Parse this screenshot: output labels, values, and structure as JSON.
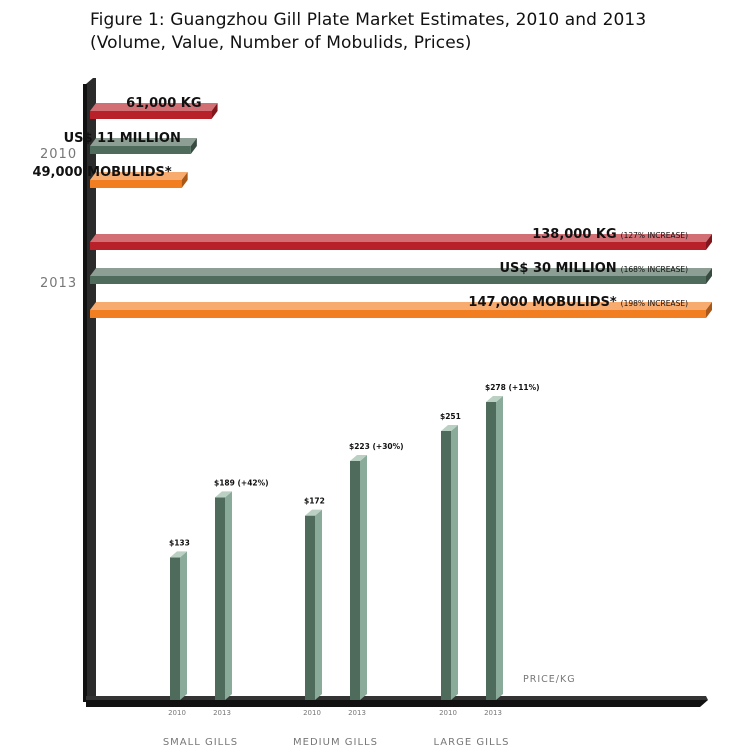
{
  "title_line1": "Figure 1: Guangzhou Gill Plate Market Estimates, 2010 and 2013",
  "title_line2": "(Volume, Value, Number of Mobulids, Prices)",
  "chart_data": [
    {
      "type": "bar",
      "orientation": "horizontal",
      "categories": [
        "2010",
        "2013"
      ],
      "series": [
        {
          "metric": "volume",
          "color": "#b8212a",
          "values": [
            61000,
            138000
          ],
          "unit": "kg",
          "labels": [
            "61,000 KG",
            "138,000 KG"
          ],
          "notes": [
            "",
            "(127% INCREASE)"
          ]
        },
        {
          "metric": "value",
          "color": "#4f6b5c",
          "values": [
            11,
            30
          ],
          "unit": "US$ million",
          "labels": [
            "US$ 11 MILLION",
            "US$ 30 MILLION"
          ],
          "notes": [
            "",
            "(168% INCREASE)"
          ]
        },
        {
          "metric": "mobulids",
          "color": "#f27e22",
          "values": [
            49000,
            147000
          ],
          "labels": [
            "49,000 MOBULIDS*",
            "147,000 MOBULIDS*"
          ],
          "notes": [
            "",
            "(198% INCREASE)"
          ]
        }
      ]
    },
    {
      "type": "bar",
      "orientation": "vertical",
      "ylabel": "PRICE/KG",
      "groups": [
        {
          "name": "SMALL GILLS",
          "bars": [
            {
              "year": "2010",
              "value": 133,
              "label": "$133"
            },
            {
              "year": "2013",
              "value": 189,
              "label": "$189 (+42%)"
            }
          ]
        },
        {
          "name": "MEDIUM GILLS",
          "bars": [
            {
              "year": "2010",
              "value": 172,
              "label": "$172"
            },
            {
              "year": "2013",
              "value": 223,
              "label": "$223 (+30%)"
            }
          ]
        },
        {
          "name": "LARGE GILLS",
          "bars": [
            {
              "year": "2010",
              "value": 251,
              "label": "$251"
            },
            {
              "year": "2013",
              "value": 278,
              "label": "$278 (+11%)"
            }
          ]
        }
      ],
      "colors": {
        "front": "#4f6b5c",
        "side": "#8aab9a",
        "top": "#b9d0c3"
      }
    }
  ]
}
